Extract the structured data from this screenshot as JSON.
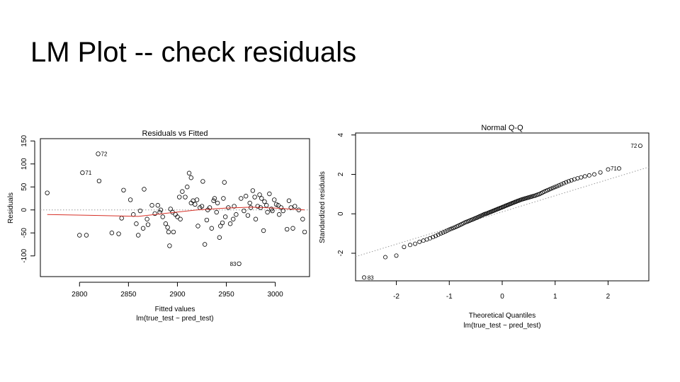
{
  "slide": {
    "title": "LM Plot -- check residuals"
  },
  "chart_data": [
    {
      "type": "scatter",
      "title": "Residuals vs Fitted",
      "xlabel": "Fitted values",
      "subtitle": "lm(true_test ~ pred_test)",
      "ylabel": "Residuals",
      "xlim": [
        2760,
        3035
      ],
      "ylim": [
        -145,
        155
      ],
      "xticks": [
        2800,
        2850,
        2900,
        2950,
        3000
      ],
      "yticks": [
        -100,
        -50,
        0,
        50,
        100,
        150
      ],
      "grid": false,
      "reference_line": {
        "y": 0,
        "style": "dotted",
        "color": "#999999"
      },
      "smooth_color": "#d73027",
      "labeled_points": [
        {
          "label": "72",
          "x": 2819,
          "y": 122
        },
        {
          "label": "71",
          "x": 2803,
          "y": 81
        },
        {
          "label": "83",
          "x": 2963,
          "y": -117
        }
      ],
      "smooth_line": [
        {
          "x": 2767,
          "y": -10
        },
        {
          "x": 2820,
          "y": -12
        },
        {
          "x": 2860,
          "y": -14
        },
        {
          "x": 2890,
          "y": -7
        },
        {
          "x": 2920,
          "y": 0
        },
        {
          "x": 2950,
          "y": 4
        },
        {
          "x": 2975,
          "y": 6
        },
        {
          "x": 3000,
          "y": 4
        },
        {
          "x": 3030,
          "y": 0
        }
      ],
      "points": [
        {
          "x": 2767,
          "y": 37
        },
        {
          "x": 2819,
          "y": 122
        },
        {
          "x": 2803,
          "y": 81
        },
        {
          "x": 2820,
          "y": 63
        },
        {
          "x": 2800,
          "y": -55
        },
        {
          "x": 2807,
          "y": -55
        },
        {
          "x": 2833,
          "y": -50
        },
        {
          "x": 2840,
          "y": -52
        },
        {
          "x": 2843,
          "y": -18
        },
        {
          "x": 2845,
          "y": 43
        },
        {
          "x": 2852,
          "y": 22
        },
        {
          "x": 2855,
          "y": -10
        },
        {
          "x": 2858,
          "y": -30
        },
        {
          "x": 2860,
          "y": -55
        },
        {
          "x": 2862,
          "y": -2
        },
        {
          "x": 2865,
          "y": -40
        },
        {
          "x": 2866,
          "y": 45
        },
        {
          "x": 2869,
          "y": -20
        },
        {
          "x": 2870,
          "y": -32
        },
        {
          "x": 2874,
          "y": 10
        },
        {
          "x": 2877,
          "y": -8
        },
        {
          "x": 2880,
          "y": 10
        },
        {
          "x": 2882,
          "y": -5
        },
        {
          "x": 2883,
          "y": 0
        },
        {
          "x": 2885,
          "y": -15
        },
        {
          "x": 2888,
          "y": -30
        },
        {
          "x": 2890,
          "y": -38
        },
        {
          "x": 2891,
          "y": -48
        },
        {
          "x": 2893,
          "y": 2
        },
        {
          "x": 2895,
          "y": -5
        },
        {
          "x": 2896,
          "y": -48
        },
        {
          "x": 2898,
          "y": -10
        },
        {
          "x": 2900,
          "y": -15
        },
        {
          "x": 2892,
          "y": -78
        },
        {
          "x": 2902,
          "y": 28
        },
        {
          "x": 2903,
          "y": -20
        },
        {
          "x": 2905,
          "y": 40
        },
        {
          "x": 2908,
          "y": 28
        },
        {
          "x": 2910,
          "y": 50
        },
        {
          "x": 2912,
          "y": 80
        },
        {
          "x": 2914,
          "y": 70
        },
        {
          "x": 2914,
          "y": 15
        },
        {
          "x": 2916,
          "y": 20
        },
        {
          "x": 2918,
          "y": 12
        },
        {
          "x": 2920,
          "y": 22
        },
        {
          "x": 2921,
          "y": -35
        },
        {
          "x": 2923,
          "y": 5
        },
        {
          "x": 2925,
          "y": 8
        },
        {
          "x": 2926,
          "y": 62
        },
        {
          "x": 2928,
          "y": -75
        },
        {
          "x": 2930,
          "y": -22
        },
        {
          "x": 2931,
          "y": 0
        },
        {
          "x": 2933,
          "y": 5
        },
        {
          "x": 2935,
          "y": -40
        },
        {
          "x": 2937,
          "y": 20
        },
        {
          "x": 2938,
          "y": 25
        },
        {
          "x": 2940,
          "y": -5
        },
        {
          "x": 2941,
          "y": 15
        },
        {
          "x": 2943,
          "y": -60
        },
        {
          "x": 2944,
          "y": -35
        },
        {
          "x": 2946,
          "y": -28
        },
        {
          "x": 2947,
          "y": 25
        },
        {
          "x": 2948,
          "y": 60
        },
        {
          "x": 2949,
          "y": -15
        },
        {
          "x": 2952,
          "y": 5
        },
        {
          "x": 2954,
          "y": -30
        },
        {
          "x": 2957,
          "y": -20
        },
        {
          "x": 2958,
          "y": 8
        },
        {
          "x": 2960,
          "y": -10
        },
        {
          "x": 2963,
          "y": -117
        },
        {
          "x": 2965,
          "y": 25
        },
        {
          "x": 2968,
          "y": -2
        },
        {
          "x": 2970,
          "y": 30
        },
        {
          "x": 2972,
          "y": -12
        },
        {
          "x": 2974,
          "y": 15
        },
        {
          "x": 2975,
          "y": 5
        },
        {
          "x": 2977,
          "y": 42
        },
        {
          "x": 2979,
          "y": 28
        },
        {
          "x": 2980,
          "y": -20
        },
        {
          "x": 2982,
          "y": 8
        },
        {
          "x": 2984,
          "y": 33
        },
        {
          "x": 2985,
          "y": 5
        },
        {
          "x": 2986,
          "y": 25
        },
        {
          "x": 2988,
          "y": -45
        },
        {
          "x": 2989,
          "y": 18
        },
        {
          "x": 2991,
          "y": 10
        },
        {
          "x": 2992,
          "y": -5
        },
        {
          "x": 2994,
          "y": 35
        },
        {
          "x": 2996,
          "y": 2
        },
        {
          "x": 2997,
          "y": -2
        },
        {
          "x": 2999,
          "y": 22
        },
        {
          "x": 3001,
          "y": 12
        },
        {
          "x": 3003,
          "y": 10
        },
        {
          "x": 3004,
          "y": -10
        },
        {
          "x": 3006,
          "y": 5
        },
        {
          "x": 3008,
          "y": -2
        },
        {
          "x": 3012,
          "y": -42
        },
        {
          "x": 3014,
          "y": 20
        },
        {
          "x": 3016,
          "y": 5
        },
        {
          "x": 3018,
          "y": -40
        },
        {
          "x": 3020,
          "y": 8
        },
        {
          "x": 3024,
          "y": 0
        },
        {
          "x": 3028,
          "y": -20
        },
        {
          "x": 3030,
          "y": -48
        }
      ]
    },
    {
      "type": "scatter",
      "title": "Normal Q-Q",
      "xlabel": "Theoretical Quantiles",
      "subtitle": "lm(true_test ~ pred_test)",
      "ylabel": "Standardized residuals",
      "xlim": [
        -2.77,
        2.77
      ],
      "ylim": [
        -3.4,
        4.1
      ],
      "xticks": [
        -2,
        -1,
        0,
        1,
        2
      ],
      "yticks": [
        -2,
        0,
        2,
        4
      ],
      "grid": false,
      "reference_line": {
        "slope": 0.82,
        "intercept": 0.1,
        "style": "dotted",
        "color": "#999999"
      },
      "labeled_points": [
        {
          "label": "72",
          "x": 2.6,
          "y": 3.45
        },
        {
          "label": "71",
          "x": 2.22,
          "y": 2.3
        },
        {
          "label": "83",
          "x": -2.6,
          "y": -3.23
        }
      ],
      "qq_points": {
        "n": 110,
        "sorted_residuals": [
          -3.23,
          -2.2,
          -2.12,
          -1.68,
          -1.58,
          -1.52,
          -1.42,
          -1.36,
          -1.3,
          -1.24,
          -1.18,
          -1.12,
          -1.06,
          -1.0,
          -0.95,
          -0.9,
          -0.85,
          -0.8,
          -0.76,
          -0.72,
          -0.68,
          -0.64,
          -0.6,
          -0.56,
          -0.52,
          -0.48,
          -0.44,
          -0.41,
          -0.38,
          -0.35,
          -0.32,
          -0.29,
          -0.26,
          -0.23,
          -0.2,
          -0.17,
          -0.14,
          -0.11,
          -0.08,
          -0.05,
          -0.02,
          0.0,
          0.02,
          0.05,
          0.07,
          0.1,
          0.12,
          0.15,
          0.17,
          0.2,
          0.22,
          0.25,
          0.27,
          0.3,
          0.32,
          0.35,
          0.37,
          0.4,
          0.42,
          0.45,
          0.47,
          0.5,
          0.52,
          0.55,
          0.57,
          0.6,
          0.62,
          0.65,
          0.67,
          0.7,
          0.72,
          0.74,
          0.76,
          0.78,
          0.8,
          0.82,
          0.84,
          0.86,
          0.88,
          0.9,
          0.92,
          0.95,
          0.98,
          1.0,
          1.04,
          1.08,
          1.12,
          1.16,
          1.2,
          1.24,
          1.28,
          1.32,
          1.36,
          1.4,
          1.45,
          1.5,
          1.55,
          1.6,
          1.65,
          1.7,
          1.75,
          1.8,
          1.85,
          1.9,
          1.95,
          2.0,
          2.1,
          2.25,
          2.3,
          3.45
        ]
      }
    }
  ]
}
